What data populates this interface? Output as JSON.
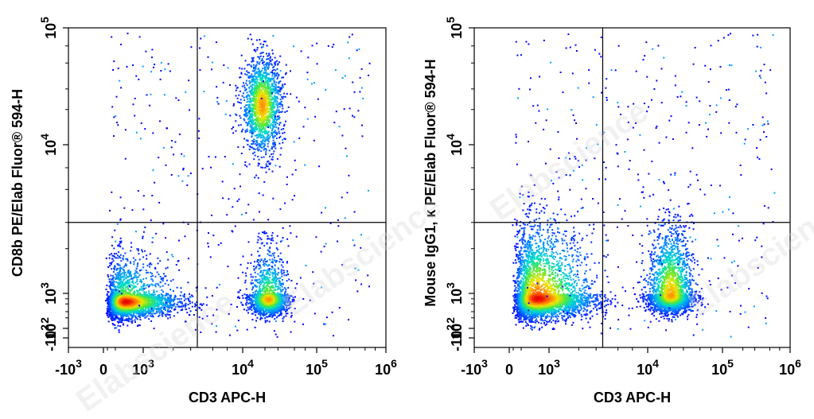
{
  "watermark": "Elabscience",
  "chart_data": [
    {
      "type": "scatter",
      "style": "density-colored flow cytometry dot plot with quadrant gates",
      "xlabel": "CD3 APC-H",
      "ylabel": "CD8b PE/Elab Fluor® 594-H",
      "x_scale": "biexponential",
      "y_scale": "biexponential",
      "xlim": [
        -1000,
        1000000
      ],
      "ylim": [
        -10,
        100000
      ],
      "x_ticks": [
        {
          "value": -1000,
          "base": "-10",
          "exp": "3"
        },
        {
          "value": 0,
          "base": "0",
          "exp": ""
        },
        {
          "value": 1000,
          "base": "10",
          "exp": "3"
        },
        {
          "value": 10000,
          "base": "10",
          "exp": "4"
        },
        {
          "value": 100000,
          "base": "10",
          "exp": "5"
        },
        {
          "value": 1000000,
          "base": "10",
          "exp": "6"
        }
      ],
      "y_ticks": [
        {
          "value": -100,
          "base": "-10",
          "exp": "2"
        },
        {
          "value": 100,
          "base": "10",
          "exp": "2"
        },
        {
          "value": 1000,
          "base": "10",
          "exp": "3"
        },
        {
          "value": 10000,
          "base": "10",
          "exp": "4"
        },
        {
          "value": 100000,
          "base": "10",
          "exp": "5"
        }
      ],
      "gate": {
        "x": 3500,
        "y": 3000
      },
      "populations": [
        {
          "x_center": 550,
          "y_center": 600,
          "x_spread_log": 0.3,
          "y_spread_log": 0.22,
          "count": 3200
        },
        {
          "x_center": 18000,
          "y_center": 22000,
          "x_spread_log": 0.13,
          "y_spread_log": 0.2,
          "count": 1600
        },
        {
          "x_center": 22000,
          "y_center": 700,
          "x_spread_log": 0.13,
          "y_spread_log": 0.22,
          "count": 1700
        }
      ]
    },
    {
      "type": "scatter",
      "style": "density-colored flow cytometry dot plot with quadrant gates",
      "xlabel": "CD3 APC-H",
      "ylabel": "Mouse IgG1, κ PE/Elab Fluor® 594-H",
      "x_scale": "biexponential",
      "y_scale": "biexponential",
      "xlim": [
        -1000,
        1000000
      ],
      "ylim": [
        -10,
        100000
      ],
      "x_ticks": [
        {
          "value": -1000,
          "base": "-10",
          "exp": "3"
        },
        {
          "value": 0,
          "base": "0",
          "exp": ""
        },
        {
          "value": 1000,
          "base": "10",
          "exp": "3"
        },
        {
          "value": 10000,
          "base": "10",
          "exp": "4"
        },
        {
          "value": 100000,
          "base": "10",
          "exp": "5"
        },
        {
          "value": 1000000,
          "base": "10",
          "exp": "6"
        }
      ],
      "y_ticks": [
        {
          "value": -100,
          "base": "-10",
          "exp": "2"
        },
        {
          "value": 100,
          "base": "10",
          "exp": "2"
        },
        {
          "value": 1000,
          "base": "10",
          "exp": "3"
        },
        {
          "value": 10000,
          "base": "10",
          "exp": "4"
        },
        {
          "value": 100000,
          "base": "10",
          "exp": "5"
        }
      ],
      "gate": {
        "x": 3500,
        "y": 3000
      },
      "populations": [
        {
          "x_center": 700,
          "y_center": 750,
          "x_spread_log": 0.3,
          "y_spread_log": 0.28,
          "count": 3800
        },
        {
          "x_center": 20000,
          "y_center": 900,
          "x_spread_log": 0.15,
          "y_spread_log": 0.24,
          "count": 2400
        }
      ]
    }
  ]
}
